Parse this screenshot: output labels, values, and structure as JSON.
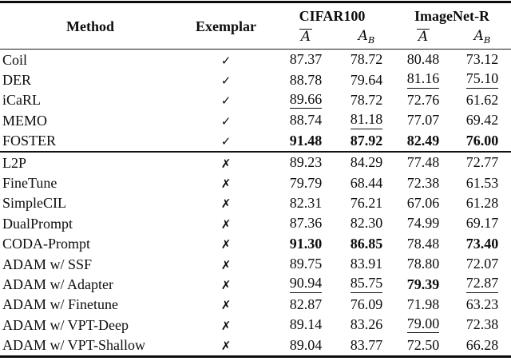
{
  "table": {
    "headers": {
      "method": "Method",
      "exemplar": "Exemplar",
      "group1": "CIFAR100",
      "group2": "ImageNet-R",
      "avg_symbol": "A",
      "last_symbol": "A",
      "last_sub": "B"
    },
    "glyphs": {
      "check": "✓",
      "cross": "✗"
    },
    "colors": {
      "text": "#0d0d0d",
      "background": "#ffffff",
      "rule": "#0c0c0c"
    },
    "sections": [
      {
        "rows": [
          {
            "method": "Coil",
            "exemplar": "yes",
            "values": [
              {
                "text": "87.37",
                "style": ""
              },
              {
                "text": "78.72",
                "style": ""
              },
              {
                "text": "80.48",
                "style": ""
              },
              {
                "text": "73.12",
                "style": ""
              }
            ]
          },
          {
            "method": "DER",
            "exemplar": "yes",
            "values": [
              {
                "text": "88.78",
                "style": ""
              },
              {
                "text": "79.64",
                "style": ""
              },
              {
                "text": "81.16",
                "style": "u"
              },
              {
                "text": "75.10",
                "style": "u"
              }
            ]
          },
          {
            "method": "iCaRL",
            "exemplar": "yes",
            "values": [
              {
                "text": "89.66",
                "style": "u"
              },
              {
                "text": "78.72",
                "style": ""
              },
              {
                "text": "72.76",
                "style": ""
              },
              {
                "text": "61.62",
                "style": ""
              }
            ]
          },
          {
            "method": "MEMO",
            "exemplar": "yes",
            "values": [
              {
                "text": "88.74",
                "style": ""
              },
              {
                "text": "81.18",
                "style": "u"
              },
              {
                "text": "77.07",
                "style": ""
              },
              {
                "text": "69.42",
                "style": ""
              }
            ]
          },
          {
            "method": "FOSTER",
            "exemplar": "yes",
            "values": [
              {
                "text": "91.48",
                "style": "b"
              },
              {
                "text": "87.92",
                "style": "b"
              },
              {
                "text": "82.49",
                "style": "b"
              },
              {
                "text": "76.00",
                "style": "b"
              }
            ]
          }
        ]
      },
      {
        "rows": [
          {
            "method": "L2P",
            "exemplar": "no",
            "values": [
              {
                "text": "89.23",
                "style": ""
              },
              {
                "text": "84.29",
                "style": ""
              },
              {
                "text": "77.48",
                "style": ""
              },
              {
                "text": "72.77",
                "style": ""
              }
            ]
          },
          {
            "method": "FineTune",
            "exemplar": "no",
            "values": [
              {
                "text": "79.79",
                "style": ""
              },
              {
                "text": "68.44",
                "style": ""
              },
              {
                "text": "72.38",
                "style": ""
              },
              {
                "text": "61.53",
                "style": ""
              }
            ]
          },
          {
            "method": "SimpleCIL",
            "exemplar": "no",
            "values": [
              {
                "text": "82.31",
                "style": ""
              },
              {
                "text": "76.21",
                "style": ""
              },
              {
                "text": "67.06",
                "style": ""
              },
              {
                "text": "61.28",
                "style": ""
              }
            ]
          },
          {
            "method": "DualPrompt",
            "exemplar": "no",
            "values": [
              {
                "text": "87.36",
                "style": ""
              },
              {
                "text": "82.30",
                "style": ""
              },
              {
                "text": "74.99",
                "style": ""
              },
              {
                "text": "69.17",
                "style": ""
              }
            ]
          },
          {
            "method": "CODA-Prompt",
            "exemplar": "no",
            "values": [
              {
                "text": "91.30",
                "style": "b"
              },
              {
                "text": "86.85",
                "style": "b"
              },
              {
                "text": "78.48",
                "style": ""
              },
              {
                "text": "73.40",
                "style": "b"
              }
            ]
          },
          {
            "method": "ADAM w/ SSF",
            "exemplar": "no",
            "values": [
              {
                "text": "89.75",
                "style": ""
              },
              {
                "text": "83.91",
                "style": ""
              },
              {
                "text": "78.80",
                "style": ""
              },
              {
                "text": "72.07",
                "style": ""
              }
            ]
          },
          {
            "method": "ADAM w/ Adapter",
            "exemplar": "no",
            "values": [
              {
                "text": "90.94",
                "style": "u"
              },
              {
                "text": "85.75",
                "style": "u"
              },
              {
                "text": "79.39",
                "style": "b"
              },
              {
                "text": "72.87",
                "style": "u"
              }
            ]
          },
          {
            "method": "ADAM w/ Finetune",
            "exemplar": "no",
            "values": [
              {
                "text": "82.87",
                "style": ""
              },
              {
                "text": "76.09",
                "style": ""
              },
              {
                "text": "71.98",
                "style": ""
              },
              {
                "text": "63.23",
                "style": ""
              }
            ]
          },
          {
            "method": "ADAM w/ VPT-Deep",
            "exemplar": "no",
            "values": [
              {
                "text": "89.14",
                "style": ""
              },
              {
                "text": "83.26",
                "style": ""
              },
              {
                "text": "79.00",
                "style": "u"
              },
              {
                "text": "72.38",
                "style": ""
              }
            ]
          },
          {
            "method": "ADAM w/ VPT-Shallow",
            "exemplar": "no",
            "values": [
              {
                "text": "89.04",
                "style": ""
              },
              {
                "text": "83.77",
                "style": ""
              },
              {
                "text": "72.50",
                "style": ""
              },
              {
                "text": "66.28",
                "style": ""
              }
            ]
          }
        ]
      }
    ]
  }
}
